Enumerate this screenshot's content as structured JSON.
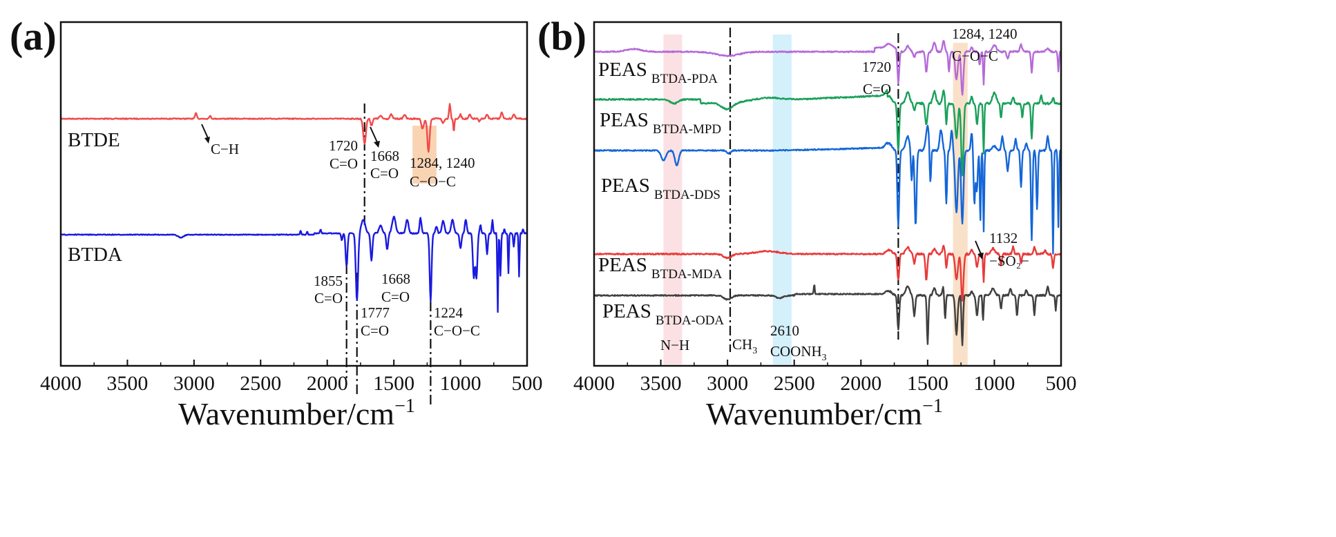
{
  "figure": {
    "panels": [
      {
        "id": "a",
        "panel_label": "(a)",
        "xlabel": "Wavenumber/cm",
        "xlabel_sup": "−1",
        "xlim": [
          4000,
          500
        ],
        "ticks": [
          "4000",
          "3500",
          "3000",
          "2500",
          "2000",
          "1500",
          "1000",
          "500"
        ],
        "series": [
          {
            "name": "BTDE",
            "color": "#f04b4b",
            "style": "btde"
          },
          {
            "name": "BTDA",
            "color": "#1a1ae0",
            "style": "btda"
          }
        ],
        "annotations": [
          {
            "lines": [
              "C−H"
            ]
          },
          {
            "lines": [
              "1720",
              "C=O"
            ]
          },
          {
            "lines": [
              "1668",
              "C=O"
            ]
          },
          {
            "lines": [
              "1284, 1240",
              "C−O−C"
            ]
          },
          {
            "lines": [
              "1855",
              "C=O"
            ]
          },
          {
            "lines": [
              "1777",
              "C=O"
            ]
          },
          {
            "lines": [
              "1668",
              "C=O"
            ]
          },
          {
            "lines": [
              "1224",
              "C−O−C"
            ]
          }
        ],
        "bands": [
          {
            "from": 1360,
            "to": 1180,
            "color": "#f8c9a0"
          }
        ],
        "marker_lines": [
          1720,
          1855,
          1777,
          1224
        ]
      },
      {
        "id": "b",
        "panel_label": "(b)",
        "xlabel": "Wavenumber/cm",
        "xlabel_sup": "−1",
        "xlim": [
          4000,
          500
        ],
        "ticks": [
          "4000",
          "3500",
          "3000",
          "2500",
          "2000",
          "1500",
          "1000",
          "500"
        ],
        "series": [
          {
            "name": "PEAS",
            "sub": "BTDA-PDA",
            "color": "#b56ad8",
            "style": "pda"
          },
          {
            "name": "PEAS",
            "sub": "BTDA-MPD",
            "color": "#1aa05a",
            "style": "mpd"
          },
          {
            "name": "PEAS",
            "sub": "BTDA-DDS",
            "color": "#1466d8",
            "style": "dds"
          },
          {
            "name": "PEAS",
            "sub": "BTDA-MDA",
            "color": "#e83a3a",
            "style": "mda"
          },
          {
            "name": "PEAS",
            "sub": "BTDA-ODA",
            "color": "#404040",
            "style": "oda"
          }
        ],
        "annotations": [
          {
            "lines": [
              "1284, 1240",
              "C−O−C"
            ]
          },
          {
            "lines": [
              "1720",
              "C=O"
            ]
          },
          {
            "lines": [
              "1132",
              "−SO₂−"
            ]
          },
          {
            "lines": [
              "N−H"
            ]
          },
          {
            "text": "CH",
            "sub": "3"
          },
          {
            "lines": [
              "2610"
            ]
          },
          {
            "text": "COONH",
            "sub": "3"
          }
        ],
        "bands": [
          {
            "from": 3480,
            "to": 3340,
            "color": "#fadadd"
          },
          {
            "from": 2660,
            "to": 2520,
            "color": "#c8ecfa"
          },
          {
            "from": 1310,
            "to": 1200,
            "color": "#f8d9bc"
          }
        ],
        "marker_lines": [
          2980,
          1720
        ]
      }
    ]
  },
  "chart_data": [
    {
      "type": "line",
      "title": "(a)",
      "xlabel": "Wavenumber/cm−1",
      "ylabel": "",
      "xlim": [
        4000,
        500
      ],
      "x_ticks": [
        4000,
        3500,
        3000,
        2500,
        2000,
        1500,
        1000,
        500
      ],
      "series": [
        {
          "name": "BTDE",
          "color": "#f04b4b",
          "key_peaks_cm-1": [
            2980,
            1720,
            1668,
            1284,
            1240
          ]
        },
        {
          "name": "BTDA",
          "color": "#1a1ae0",
          "key_peaks_cm-1": [
            1855,
            1777,
            1668,
            1224
          ]
        }
      ]
    },
    {
      "type": "line",
      "title": "(b)",
      "xlabel": "Wavenumber/cm−1",
      "ylabel": "",
      "xlim": [
        4000,
        500
      ],
      "x_ticks": [
        4000,
        3500,
        3000,
        2500,
        2000,
        1500,
        1000,
        500
      ],
      "series": [
        {
          "name": "PEAS BTDA-PDA",
          "color": "#b56ad8",
          "key_peaks_cm-1": [
            1720,
            1284,
            1240
          ]
        },
        {
          "name": "PEAS BTDA-MPD",
          "color": "#1aa05a",
          "key_peaks_cm-1": [
            1720,
            1284,
            1240
          ]
        },
        {
          "name": "PEAS BTDA-DDS",
          "color": "#1466d8",
          "key_peaks_cm-1": [
            3400,
            1720,
            1284,
            1240,
            1132
          ]
        },
        {
          "name": "PEAS BTDA-MDA",
          "color": "#e83a3a",
          "key_peaks_cm-1": [
            1720,
            1284,
            1240
          ]
        },
        {
          "name": "PEAS BTDA-ODA",
          "color": "#404040",
          "key_peaks_cm-1": [
            2980,
            2610,
            1720,
            1284,
            1240
          ]
        }
      ],
      "highlight_bands_cm-1": [
        [
          3480,
          3340
        ],
        [
          2660,
          2520
        ],
        [
          1310,
          1200
        ]
      ],
      "band_labels": [
        "N−H",
        "2610 COONH3",
        "1284, 1240 C−O−C"
      ]
    }
  ]
}
